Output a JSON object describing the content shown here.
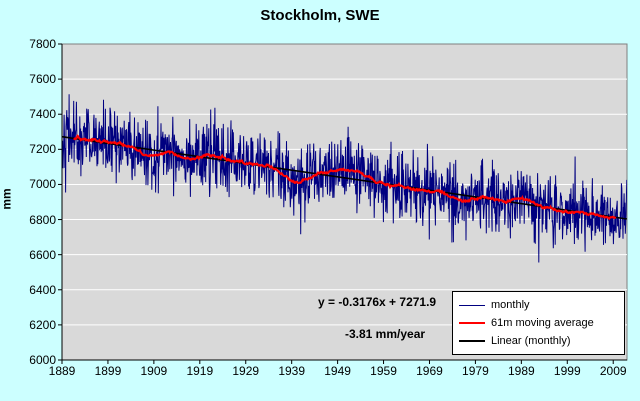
{
  "window": {
    "background": "#CCFFFF"
  },
  "chart_data": {
    "type": "line",
    "title": "Stockholm, SWE",
    "ylabel": "mm",
    "xlabel": "",
    "ylim": [
      6000,
      7800
    ],
    "xlim": [
      1889,
      2012
    ],
    "y_ticks": [
      6000,
      6200,
      6400,
      6600,
      6800,
      7000,
      7200,
      7400,
      7600,
      7800
    ],
    "x_ticks": [
      1889,
      1899,
      1909,
      1919,
      1929,
      1939,
      1949,
      1959,
      1969,
      1979,
      1989,
      1999,
      2009
    ],
    "grid": "horizontal",
    "plot_background": "#D9D9D9",
    "gridline_color": "#FFFFFF",
    "annotations": [
      "y = -0.3176x + 7271.9",
      "-3.81 mm/year"
    ],
    "trend": {
      "slope_mm_per_month": -0.3176,
      "intercept_mm": 7271.9,
      "rate_mm_per_year": -3.81,
      "start_year": 1889
    },
    "series": [
      {
        "name": "monthly",
        "color": "#000080",
        "style": "thin-noisy-line",
        "noise_sd_mm": 100,
        "seed": 42
      },
      {
        "name": "61m moving average",
        "color": "#FF0000",
        "style": "thick-line",
        "window_months": 61
      },
      {
        "name": "Linear (monthly)",
        "color": "#000000",
        "style": "straight-line",
        "equation": "y = -0.3176x + 7271.9"
      }
    ],
    "moving_average_anomaly_points": [
      [
        1889,
        5
      ],
      [
        1895,
        5
      ],
      [
        1900,
        5
      ],
      [
        1904,
        -20
      ],
      [
        1907,
        -35
      ],
      [
        1912,
        10
      ],
      [
        1916,
        10
      ],
      [
        1920,
        -5
      ],
      [
        1925,
        12
      ],
      [
        1930,
        -5
      ],
      [
        1935,
        -5
      ],
      [
        1939,
        -50
      ],
      [
        1942,
        -75
      ],
      [
        1946,
        5
      ],
      [
        1950,
        25
      ],
      [
        1955,
        20
      ],
      [
        1960,
        0
      ],
      [
        1965,
        -5
      ],
      [
        1970,
        -10
      ],
      [
        1976,
        -35
      ],
      [
        1980,
        5
      ],
      [
        1985,
        0
      ],
      [
        1990,
        38
      ],
      [
        1993,
        -10
      ],
      [
        1997,
        -30
      ],
      [
        2001,
        -5
      ],
      [
        2005,
        20
      ],
      [
        2008,
        -5
      ],
      [
        2012,
        10
      ]
    ],
    "legend": {
      "position": "bottom-right",
      "entries": [
        "monthly",
        "61m moving average",
        "Linear (monthly)"
      ]
    }
  }
}
